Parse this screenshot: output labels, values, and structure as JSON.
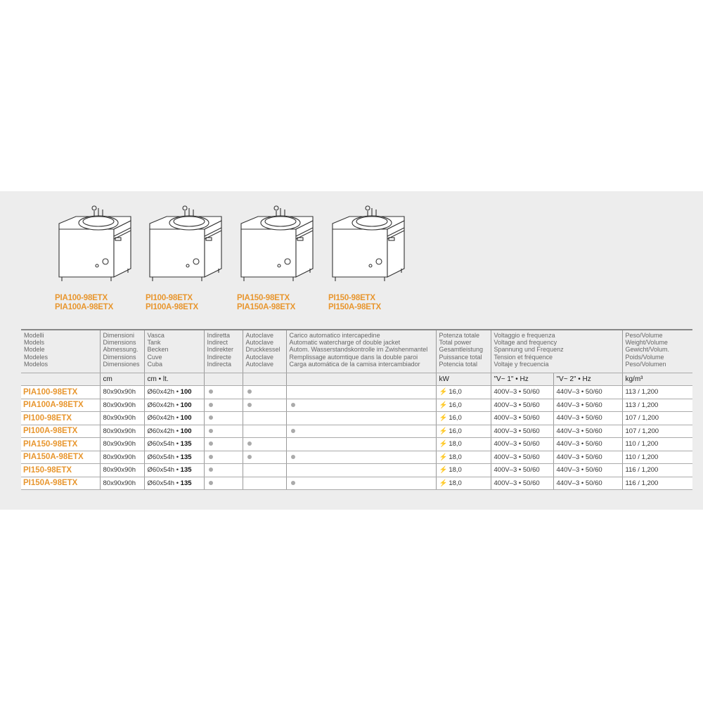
{
  "products": [
    {
      "captions": [
        "PIA100-98ETX",
        "PIA100A-98ETX"
      ]
    },
    {
      "captions": [
        "PI100-98ETX",
        "PI100A-98ETX"
      ]
    },
    {
      "captions": [
        "PIA150-98ETX",
        "PIA150A-98ETX"
      ]
    },
    {
      "captions": [
        "PI150-98ETX",
        "PI150A-98ETX"
      ]
    }
  ],
  "headers": {
    "models": [
      "Modelli",
      "Models",
      "Modele",
      "Modeles",
      "Modelos"
    ],
    "dimensions": [
      "Dimensioni",
      "Dimensions",
      "Abmessung.",
      "Dimensions",
      "Dimensiones"
    ],
    "tank": [
      "Vasca",
      "Tank",
      "Becken",
      "Cuve",
      "Cuba"
    ],
    "indirect": [
      "Indiretta",
      "Indirect",
      "Indirekter",
      "Indirecte",
      "Indirecta"
    ],
    "autoclave": [
      "Autoclave",
      "Autoclave",
      "Druckkessel",
      "Autoclave",
      "Autoclave"
    ],
    "watercharge": [
      "Carico automatico intercapedine",
      "Automatic watercharge of double jacket",
      "Autom. Wasserstandskontrolle im Zwishenmantel",
      "Remplissage automtique dans la double paroi",
      "Carga automática de la camisa intercambiador"
    ],
    "power": [
      "Potenza totale",
      "Total power",
      "Gesamtleistung",
      "Puissance total",
      "Potencia total"
    ],
    "voltage": [
      "Voltaggio e frequenza",
      "Voltage and frequency",
      "Spannung und Frequenz",
      "Tension et fréquence",
      "Voltaje y frecuencia"
    ],
    "weight": [
      "Peso/Volume",
      "Weight/Volume",
      "Gewicht/Volum.",
      "Poids/Volume",
      "Peso/Volumen"
    ]
  },
  "units": {
    "dimensions": "cm",
    "tank": "cm • lt.",
    "power": "kW",
    "v1": "\"V~ 1\" • Hz",
    "v2": "\"V~ 2\" • Hz",
    "weight": "kg/m³"
  },
  "icons": {
    "dot": "bullet-dot-icon",
    "power": "lightning-bolt-icon"
  },
  "colors": {
    "model": "#e8962e",
    "bolt": "#e03030"
  },
  "rows": [
    {
      "model": "PIA100-98ETX",
      "dim": "80x90x90h",
      "tank": "Ø60x42h •",
      "lt": "100",
      "indirect": true,
      "autoclave": true,
      "water": false,
      "kw": "16,0",
      "v1": "400V–3 • 50/60",
      "v2": "440V–3 • 50/60",
      "weight": "113 / 1,200"
    },
    {
      "model": "PIA100A-98ETX",
      "dim": "80x90x90h",
      "tank": "Ø60x42h •",
      "lt": "100",
      "indirect": true,
      "autoclave": true,
      "water": true,
      "kw": "16,0",
      "v1": "400V–3 • 50/60",
      "v2": "440V–3 • 50/60",
      "weight": "113 / 1,200"
    },
    {
      "model": "PI100-98ETX",
      "dim": "80x90x90h",
      "tank": "Ø60x42h •",
      "lt": "100",
      "indirect": true,
      "autoclave": false,
      "water": false,
      "kw": "16,0",
      "v1": "400V–3 • 50/60",
      "v2": "440V–3 • 50/60",
      "weight": "107 / 1,200"
    },
    {
      "model": "PI100A-98ETX",
      "dim": "80x90x90h",
      "tank": "Ø60x42h •",
      "lt": "100",
      "indirect": true,
      "autoclave": false,
      "water": true,
      "kw": "16,0",
      "v1": "400V–3 • 50/60",
      "v2": "440V–3 • 50/60",
      "weight": "107 / 1,200"
    },
    {
      "model": "PIA150-98ETX",
      "dim": "80x90x90h",
      "tank": "Ø60x54h •",
      "lt": "135",
      "indirect": true,
      "autoclave": true,
      "water": false,
      "kw": "18,0",
      "v1": "400V–3 • 50/60",
      "v2": "440V–3 • 50/60",
      "weight": "110 / 1,200"
    },
    {
      "model": "PIA150A-98ETX",
      "dim": "80x90x90h",
      "tank": "Ø60x54h •",
      "lt": "135",
      "indirect": true,
      "autoclave": true,
      "water": true,
      "kw": "18,0",
      "v1": "400V–3 • 50/60",
      "v2": "440V–3 • 50/60",
      "weight": "110 / 1,200"
    },
    {
      "model": "PI150-98ETX",
      "dim": "80x90x90h",
      "tank": "Ø60x54h •",
      "lt": "135",
      "indirect": true,
      "autoclave": false,
      "water": false,
      "kw": "18,0",
      "v1": "400V–3 • 50/60",
      "v2": "440V–3 • 50/60",
      "weight": "116 / 1,200"
    },
    {
      "model": "PI150A-98ETX",
      "dim": "80x90x90h",
      "tank": "Ø60x54h •",
      "lt": "135",
      "indirect": true,
      "autoclave": false,
      "water": true,
      "kw": "18,0",
      "v1": "400V–3 • 50/60",
      "v2": "440V–3 • 50/60",
      "weight": "116 / 1,200"
    }
  ]
}
